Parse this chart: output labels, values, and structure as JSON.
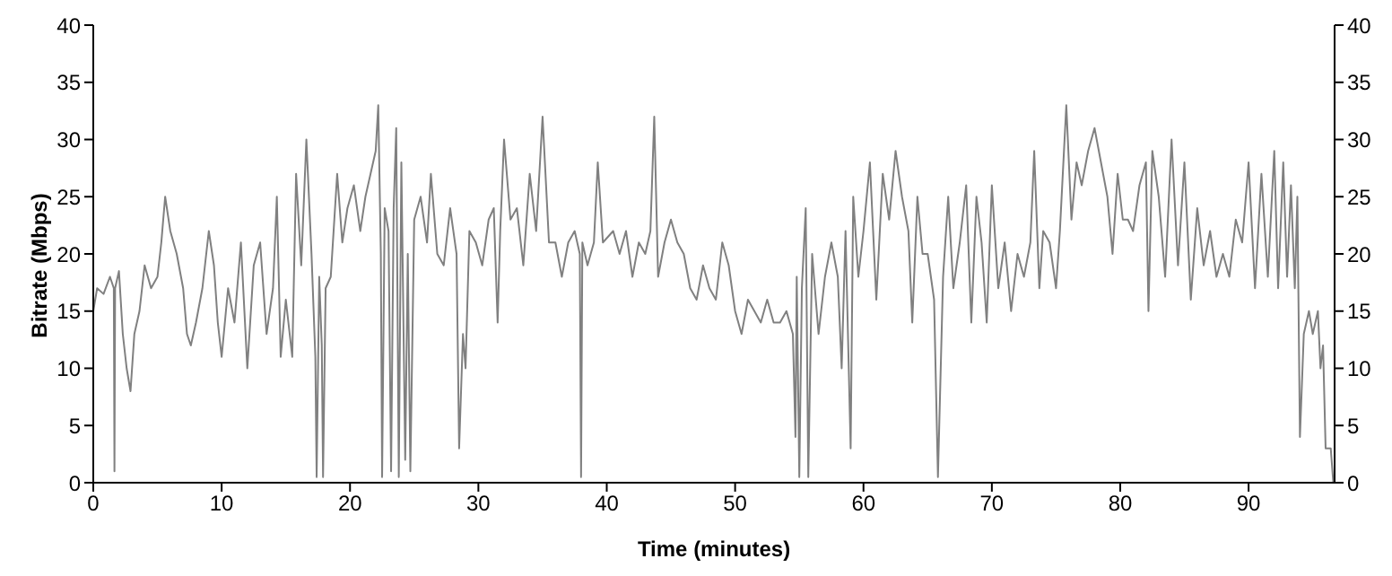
{
  "chart_data": {
    "type": "line",
    "xlabel": "Time (minutes)",
    "ylabel": "Bitrate (Mbps)",
    "x": [
      0,
      0.3,
      0.8,
      1.3,
      1.6,
      1.65,
      1.7,
      2,
      2.3,
      2.6,
      2.9,
      3.2,
      3.6,
      4,
      4.5,
      5,
      5.3,
      5.6,
      6,
      6.5,
      7,
      7.3,
      7.6,
      8,
      8.5,
      9,
      9.4,
      9.7,
      10,
      10.5,
      11,
      11.5,
      12,
      12.5,
      13,
      13.5,
      14,
      14.3,
      14.6,
      15,
      15.5,
      15.8,
      16.2,
      16.6,
      17,
      17.3,
      17.4,
      17.6,
      17.8,
      17.9,
      18.1,
      18.5,
      19,
      19.4,
      19.8,
      20.3,
      20.8,
      21.2,
      21.6,
      22,
      22.2,
      22.4,
      22.5,
      22.7,
      23,
      23.2,
      23.4,
      23.6,
      23.8,
      24,
      24.3,
      24.5,
      24.7,
      25,
      25.5,
      26,
      26.3,
      26.8,
      27.3,
      27.8,
      28.3,
      28.5,
      28.8,
      29,
      29.3,
      29.8,
      30.3,
      30.8,
      31.2,
      31.5,
      31.7,
      32,
      32.5,
      33,
      33.5,
      34,
      34.5,
      35,
      35.5,
      36,
      36.5,
      37,
      37.5,
      37.9,
      38,
      38.1,
      38.5,
      39,
      39.3,
      39.7,
      40.5,
      41,
      41.5,
      42,
      42.5,
      43,
      43.4,
      43.7,
      44,
      44.5,
      45,
      45.5,
      46,
      46.5,
      47,
      47.5,
      48,
      48.5,
      49,
      49.5,
      50,
      50.5,
      51,
      51.5,
      52,
      52.5,
      53,
      53.5,
      54,
      54.5,
      54.7,
      54.8,
      55,
      55.2,
      55.5,
      55.7,
      56,
      56.5,
      57,
      57.5,
      58,
      58.3,
      58.6,
      59,
      59.2,
      59.6,
      60,
      60.5,
      61,
      61.5,
      62,
      62.5,
      63,
      63.5,
      63.8,
      64.2,
      64.6,
      65,
      65.5,
      65.8,
      66.2,
      66.6,
      67,
      67.5,
      68,
      68.4,
      68.8,
      69.2,
      69.6,
      70,
      70.5,
      71,
      71.5,
      72,
      72.5,
      73,
      73.3,
      73.7,
      74,
      74.5,
      75,
      75.3,
      75.8,
      76.2,
      76.6,
      77,
      77.5,
      78,
      78.5,
      79,
      79.4,
      79.8,
      80.2,
      80.6,
      81,
      81.5,
      82,
      82.2,
      82.5,
      83,
      83.5,
      84,
      84.5,
      85,
      85.5,
      86,
      86.5,
      87,
      87.5,
      88,
      88.5,
      89,
      89.5,
      90,
      90.5,
      91,
      91.5,
      92,
      92.3,
      92.7,
      93,
      93.3,
      93.6,
      93.8,
      94,
      94.3,
      94.7,
      95,
      95.4,
      95.6,
      95.8,
      96,
      96.4,
      96.6
    ],
    "series": [
      {
        "color": "#808080",
        "values": [
          15,
          17,
          16.5,
          18,
          17,
          1,
          17,
          18.5,
          13,
          10,
          8,
          13,
          15,
          19,
          17,
          18,
          21,
          25,
          22,
          20,
          17,
          13,
          12,
          14,
          17,
          22,
          19,
          14,
          11,
          17,
          14,
          21,
          10,
          19,
          21,
          13,
          17,
          25,
          11,
          16,
          11,
          27,
          19,
          30,
          20,
          11,
          0.5,
          18,
          12,
          0.5,
          17,
          18,
          27,
          21,
          24,
          26,
          22,
          25,
          27,
          29,
          33,
          20,
          0.5,
          24,
          22,
          1,
          24,
          31,
          0.5,
          28,
          2,
          20,
          1,
          23,
          25,
          21,
          27,
          20,
          19,
          24,
          20,
          3,
          13,
          10,
          22,
          21,
          19,
          23,
          24,
          14,
          22,
          30,
          23,
          24,
          19,
          27,
          22,
          32,
          21,
          21,
          18,
          21,
          22,
          20,
          0.5,
          21,
          19,
          21,
          28,
          21,
          22,
          20,
          22,
          18,
          21,
          20,
          22,
          32,
          18,
          21,
          23,
          21,
          20,
          17,
          16,
          19,
          17,
          16,
          21,
          19,
          15,
          13,
          16,
          15,
          14,
          16,
          14,
          14,
          15,
          13,
          4,
          18,
          0.5,
          17,
          24,
          0.5,
          20,
          13,
          18,
          21,
          18,
          10,
          22,
          3,
          25,
          18,
          22,
          28,
          16,
          27,
          23,
          29,
          25,
          22,
          14,
          25,
          20,
          20,
          16,
          0.5,
          18,
          25,
          17,
          21,
          26,
          14,
          25,
          21,
          14,
          26,
          17,
          21,
          15,
          20,
          18,
          21,
          29,
          17,
          22,
          21,
          17,
          22,
          33,
          23,
          28,
          26,
          29,
          31,
          28,
          25,
          20,
          27,
          23,
          23,
          22,
          26,
          28,
          15,
          29,
          25,
          18,
          30,
          19,
          28,
          16,
          24,
          19,
          22,
          18,
          20,
          18,
          23,
          21,
          28,
          17,
          27,
          18,
          29,
          17,
          28,
          18,
          26,
          17,
          25,
          4,
          13,
          15,
          13,
          15,
          10,
          12,
          3,
          3,
          0
        ]
      }
    ],
    "xlim": [
      0,
      96.7
    ],
    "xticks": [
      0,
      10,
      20,
      30,
      40,
      50,
      60,
      70,
      80,
      90
    ],
    "ylim": [
      0,
      40
    ],
    "yticks": [
      0,
      5,
      10,
      15,
      20,
      25,
      30,
      35,
      40
    ],
    "y2lim": [
      0,
      40
    ],
    "y2ticks": [
      0,
      5,
      10,
      15,
      20,
      25,
      30,
      35,
      40
    ],
    "marker": "none",
    "line_style": "solid",
    "grid": false
  }
}
